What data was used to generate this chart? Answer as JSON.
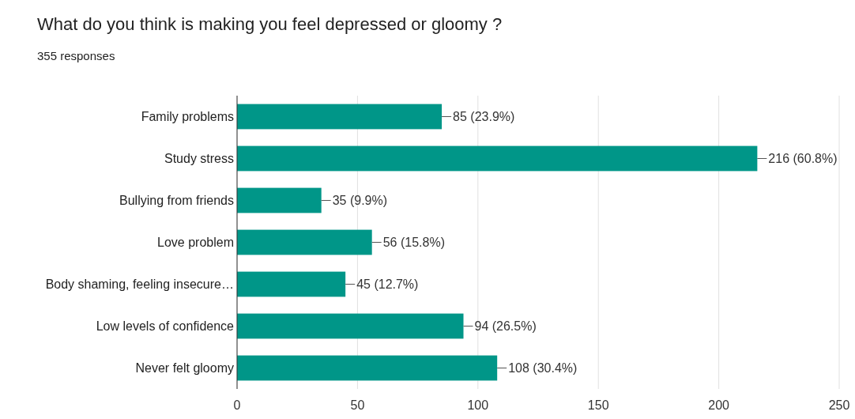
{
  "chart_data": {
    "type": "bar",
    "orientation": "horizontal",
    "title": "What do you think is making you feel depressed or gloomy ?",
    "subtitle": "355 responses",
    "categories": [
      "Family problems",
      "Study stress",
      "Bullying from friends",
      "Love problem",
      "Body shaming, feeling insecure…",
      "Low levels of confidence",
      "Never felt gloomy"
    ],
    "values": [
      85,
      216,
      35,
      56,
      45,
      94,
      108
    ],
    "value_labels": [
      "85 (23.9%)",
      "216 (60.8%)",
      "35 (9.9%)",
      "56 (15.8%)",
      "45 (12.7%)",
      "94 (26.5%)",
      "108 (30.4%)"
    ],
    "color": "#009688",
    "xlim": [
      0,
      250
    ],
    "xticks": [
      0,
      50,
      100,
      150,
      200,
      250
    ],
    "grid": "x"
  }
}
